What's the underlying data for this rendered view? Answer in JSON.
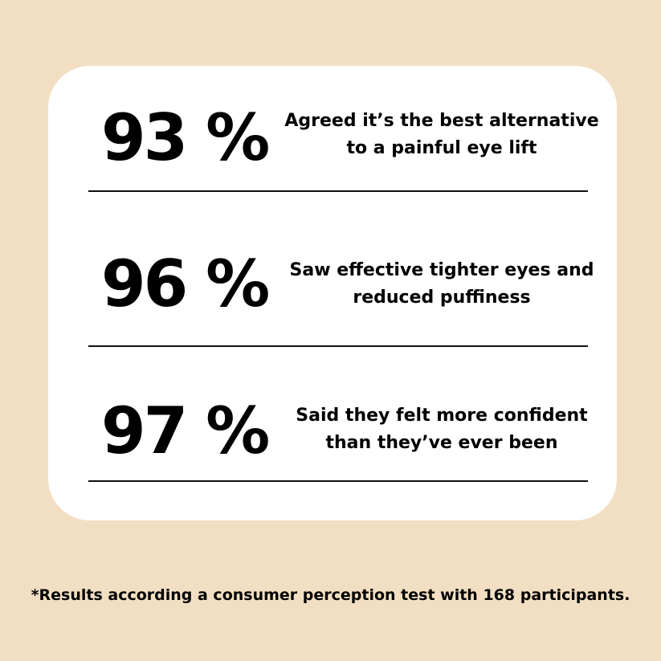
{
  "stats": [
    {
      "value": "93 %",
      "text_line1": "Agreed it’s the best alternative",
      "text_line2": "to a painful eye lift"
    },
    {
      "value": "96 %",
      "text_line1": "Saw effective tighter eyes and",
      "text_line2": "reduced puffiness"
    },
    {
      "value": "97 %",
      "text_line1": "Said they felt more confident",
      "text_line2": "than they’ve ever been"
    }
  ],
  "footnote": "*Results according a consumer perception test with 168 participants.",
  "colors": {
    "background": "#f2dfc3",
    "card": "#ffffff",
    "text": "#000000"
  }
}
